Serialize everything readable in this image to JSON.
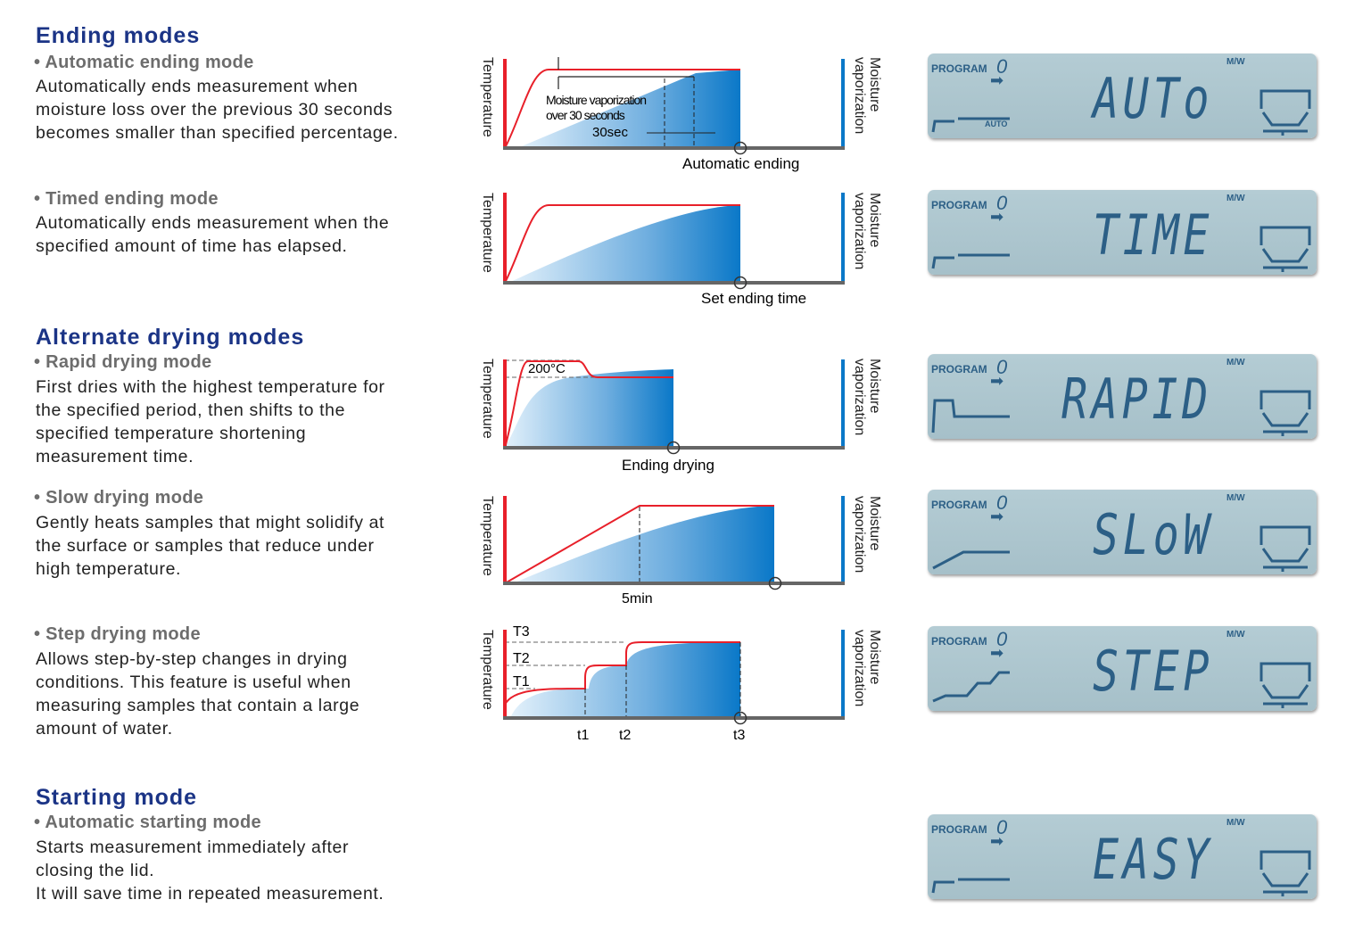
{
  "sections": {
    "ending": {
      "title": "Ending modes",
      "automatic": {
        "title": "• Automatic ending mode",
        "lines": [
          "Automatically ends measurement when",
          "moisture loss over the previous 30 seconds",
          "becomes smaller than specified percentage."
        ]
      },
      "timed": {
        "title": "• Timed ending mode",
        "lines": [
          "Automatically ends measurement when the",
          "specified amount of time has elapsed."
        ]
      }
    },
    "alternate": {
      "title": "Alternate drying modes",
      "rapid": {
        "title": "• Rapid drying mode",
        "lines": [
          "First dries with the highest temperature for",
          "the specified period, then shifts to the",
          "specified temperature shortening",
          "measurement time."
        ]
      },
      "slow": {
        "title": "• Slow drying mode",
        "lines": [
          "Gently heats samples that might solidify at",
          "the surface or samples that reduce under",
          "high temperature."
        ]
      },
      "step": {
        "title": "• Step drying mode",
        "lines": [
          "Allows step-by-step changes in drying",
          "conditions. This feature is useful when",
          "measuring samples that contain a large",
          "amount of water."
        ]
      }
    },
    "starting": {
      "title": "Starting mode",
      "automatic": {
        "title": "• Automatic starting mode",
        "lines": [
          "Starts measurement immediately after",
          "closing the lid.",
          "It will save time in repeated measurement."
        ]
      }
    }
  },
  "diagrams": {
    "y_axis": "Temperature",
    "y2_axis": [
      "Moisture",
      "vaporization"
    ],
    "auto": {
      "note1": "Moisture vaporization",
      "note2": "over 30 seconds",
      "interval": "30sec",
      "end_label": "Automatic ending"
    },
    "timed": {
      "end_label": "Set ending time"
    },
    "rapid": {
      "temp": "200°C",
      "end_label": "Ending drying"
    },
    "slow": {
      "time": "5min"
    },
    "step": {
      "temps": [
        "T1",
        "T2",
        "T3"
      ],
      "times": [
        "t1",
        "t2",
        "t3"
      ]
    }
  },
  "lcd": {
    "program": "PROGRAM",
    "program_no": "0",
    "mw_top": "M",
    "mw_bottom": "W",
    "auto_tag": "AUTO",
    "words": [
      "AUTo",
      "TIME",
      "RAPID",
      "SLoW",
      "STEP",
      "EASY"
    ]
  },
  "colors": {
    "heading": "#1b3486",
    "temperature": "#e8202a",
    "moisture": "#0a78c8",
    "lcd": "#aec7cf"
  }
}
